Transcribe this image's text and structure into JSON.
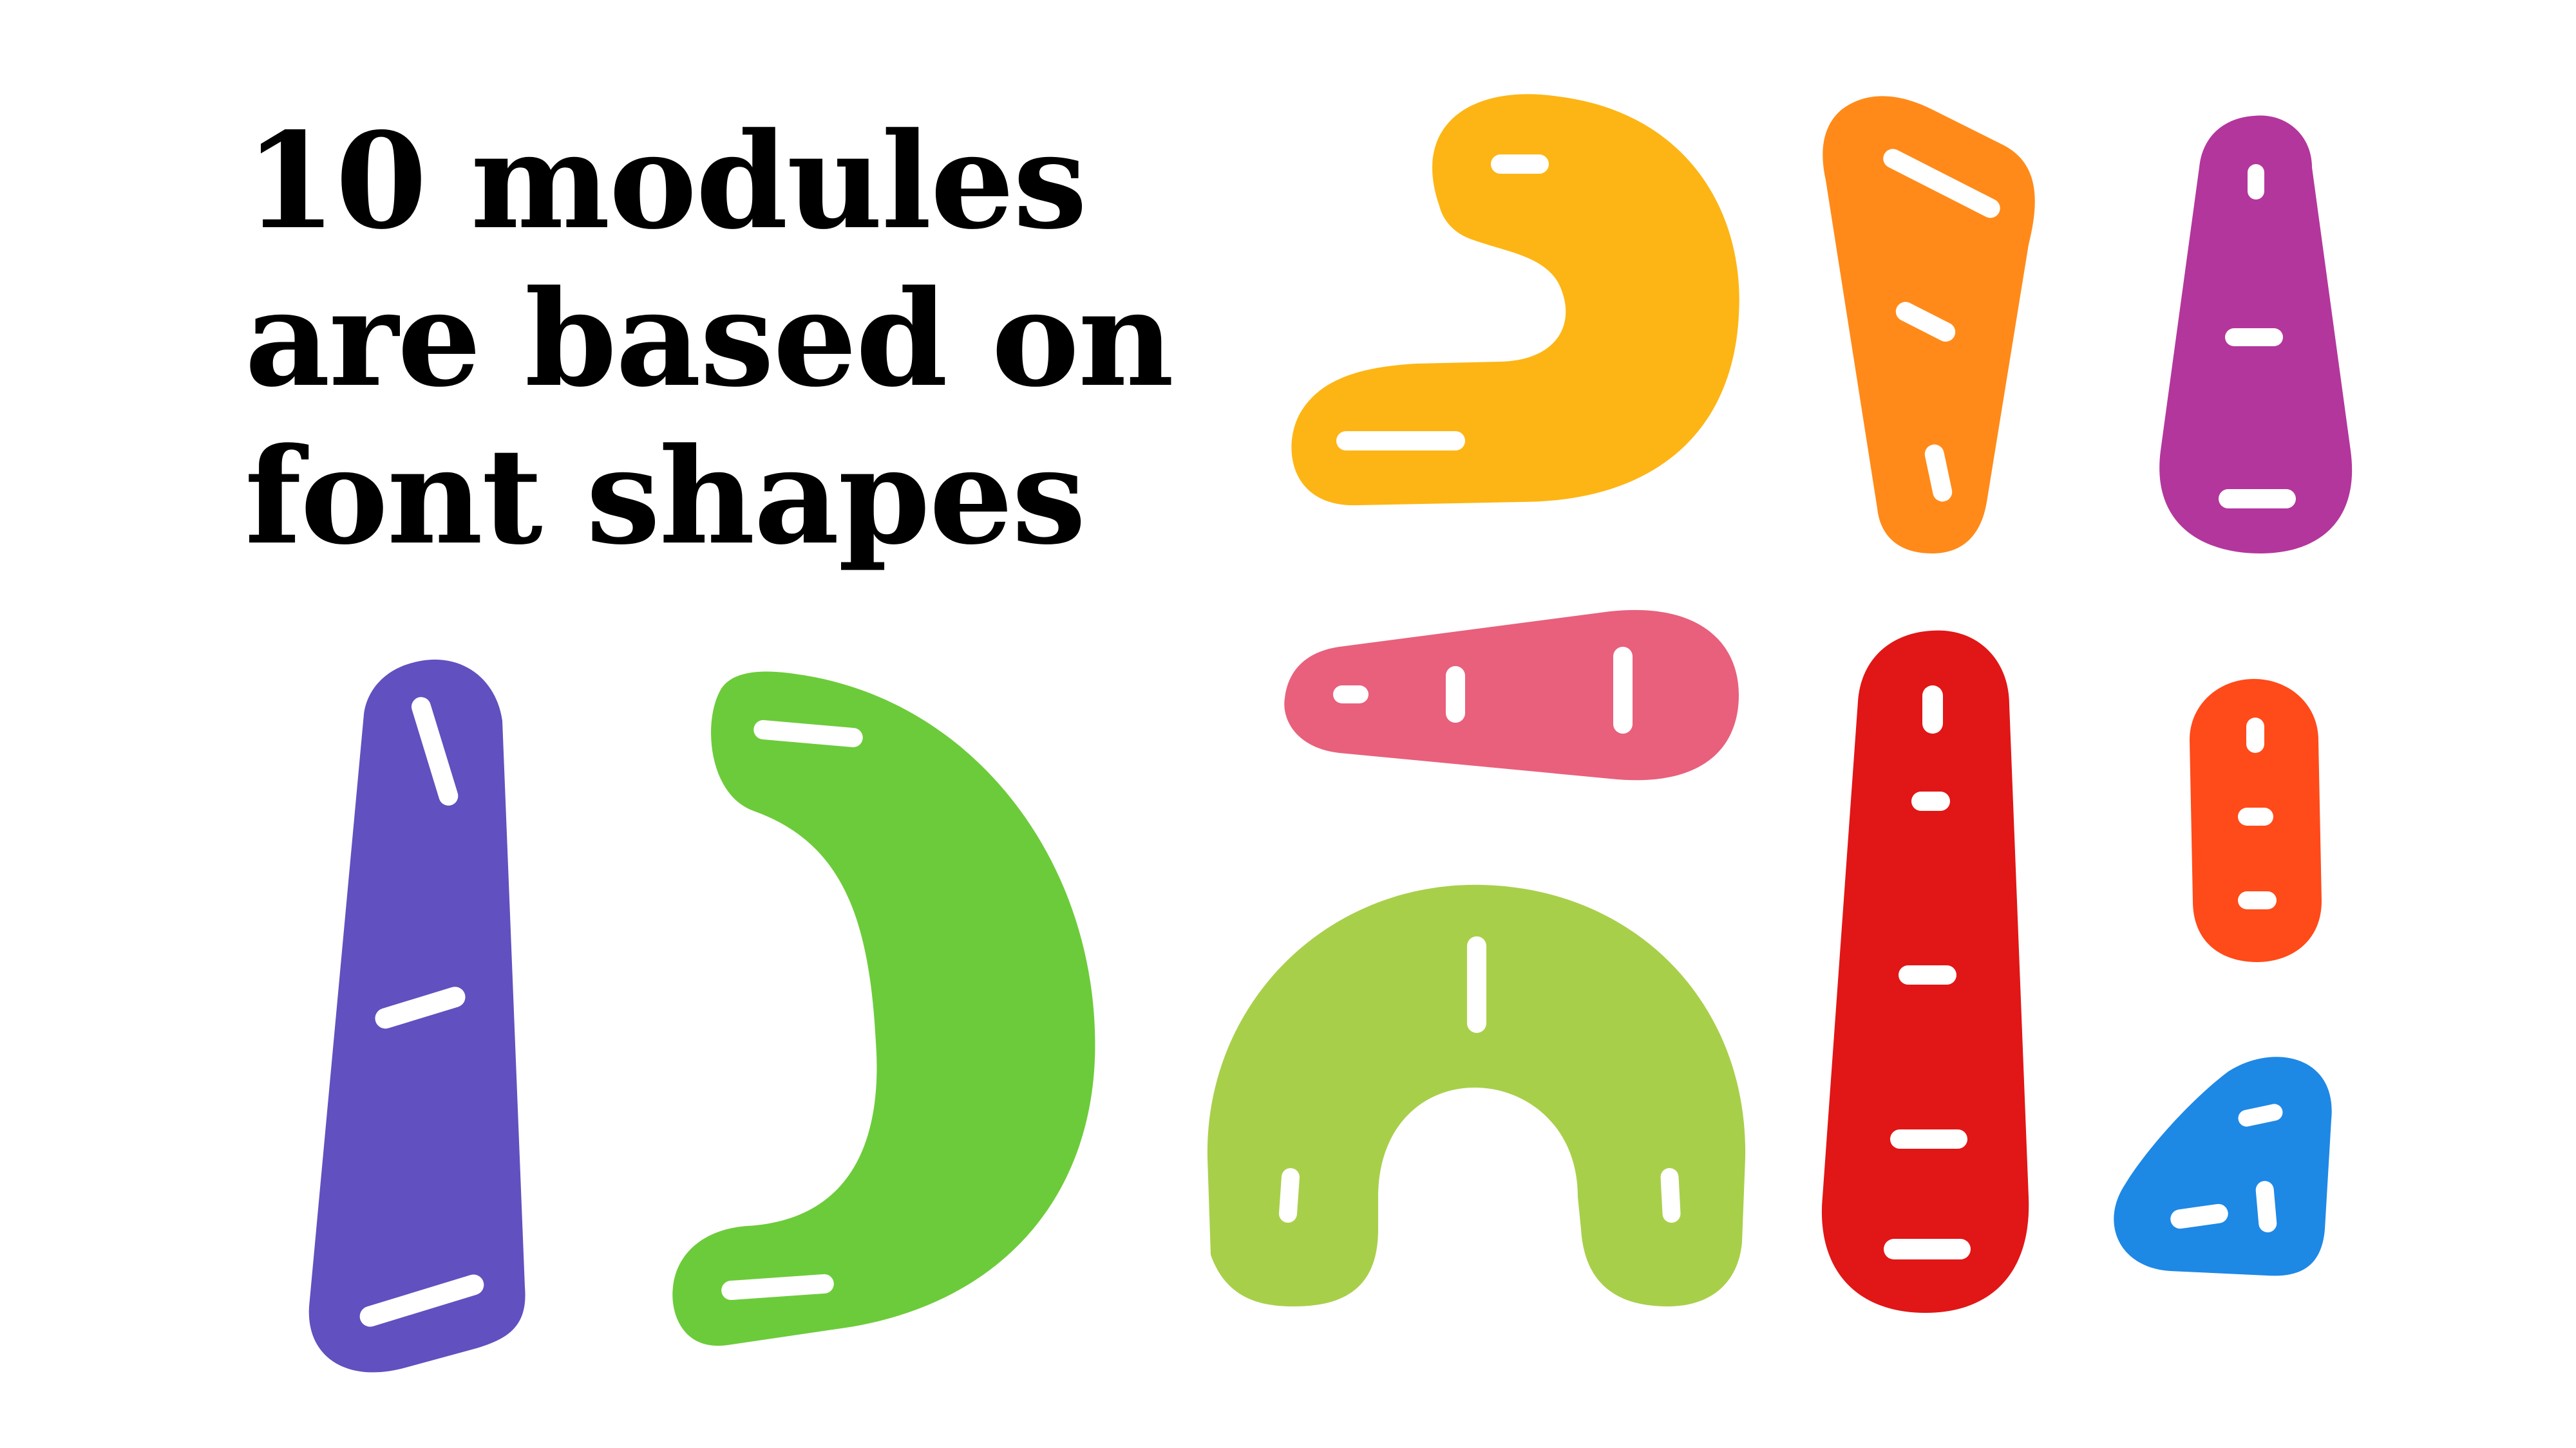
{
  "headline": {
    "line1": "10 modules",
    "line2": "are based on",
    "line3": "font shapes"
  },
  "module_colors": {
    "yellow": "#FDB515",
    "orange": "#FF8A1A",
    "magenta": "#B3369C",
    "pink": "#E8607C",
    "red": "#E11616",
    "red_orange": "#FF4A1A",
    "blue": "#1E88E5",
    "purple": "#6150BF",
    "green": "#6CCB3A",
    "light_green": "#A8CF4A"
  }
}
